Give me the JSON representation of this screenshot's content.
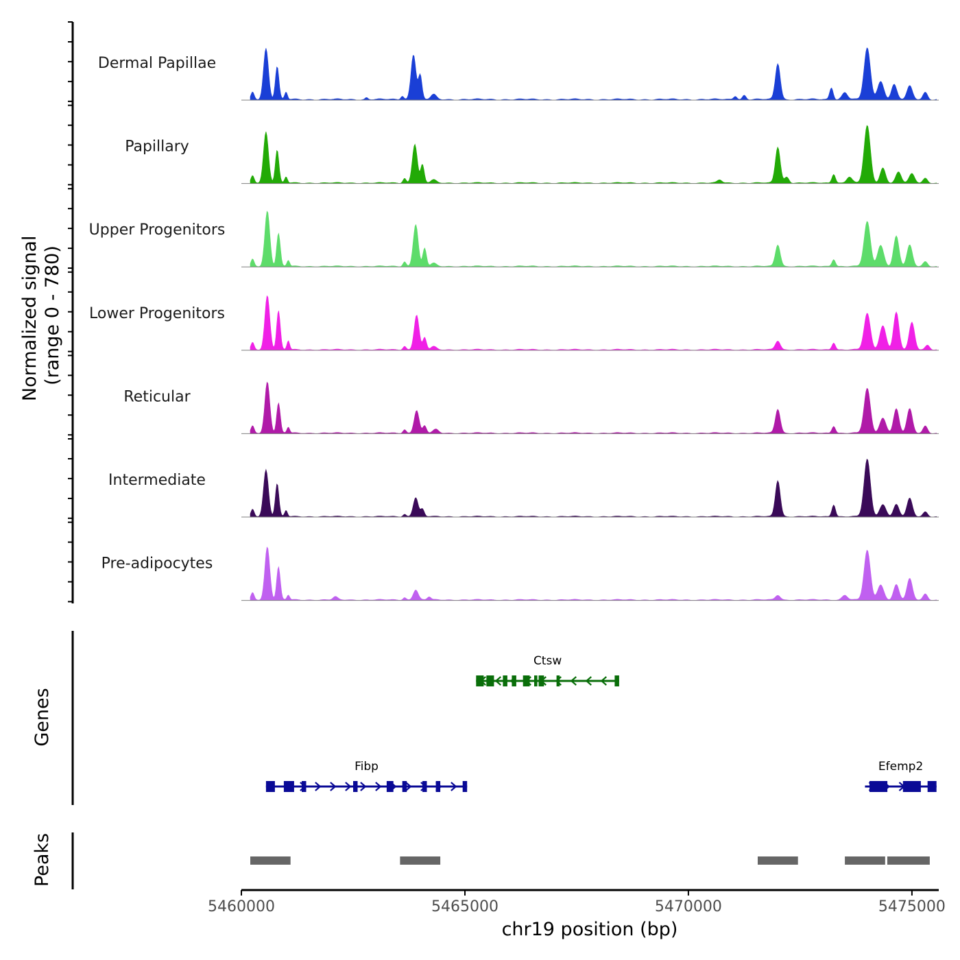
{
  "chart_data": {
    "type": "coverage-track",
    "chromosome": "chr19",
    "x_range_bp": [
      5460000,
      5475600
    ],
    "signal_range": [
      0,
      780
    ],
    "ylabel_line1": "Normalized signal",
    "ylabel_line2": "(range 0 - 780)",
    "xlabel": "chr19 position (bp)",
    "x_ticks": [
      {
        "value": 5460000,
        "label": "5460000"
      },
      {
        "value": 5465000,
        "label": "5465000"
      },
      {
        "value": 5470000,
        "label": "5470000"
      },
      {
        "value": 5475000,
        "label": "5475000"
      }
    ],
    "genes_label": "Genes",
    "peaks_label": "Peaks",
    "tracks": [
      {
        "name": "Dermal Papillae",
        "color": "#1a3fd6",
        "peaks": [
          [
            5460250,
            0.12,
            35
          ],
          [
            5460550,
            0.85,
            55
          ],
          [
            5460800,
            0.55,
            40
          ],
          [
            5461000,
            0.12,
            30
          ],
          [
            5462800,
            0.03,
            30
          ],
          [
            5463600,
            0.06,
            35
          ],
          [
            5463850,
            0.75,
            55
          ],
          [
            5464000,
            0.4,
            40
          ],
          [
            5464300,
            0.08,
            60
          ],
          [
            5471050,
            0.06,
            40
          ],
          [
            5471250,
            0.07,
            40
          ],
          [
            5472000,
            0.6,
            55
          ],
          [
            5473200,
            0.2,
            40
          ],
          [
            5473500,
            0.12,
            60
          ],
          [
            5474000,
            0.85,
            70
          ],
          [
            5474300,
            0.3,
            70
          ],
          [
            5474600,
            0.25,
            60
          ],
          [
            5474950,
            0.22,
            60
          ],
          [
            5475300,
            0.12,
            50
          ]
        ],
        "noise": 0.025
      },
      {
        "name": "Papillary",
        "color": "#22aa06",
        "peaks": [
          [
            5460250,
            0.12,
            35
          ],
          [
            5460550,
            0.85,
            55
          ],
          [
            5460800,
            0.55,
            40
          ],
          [
            5461000,
            0.1,
            30
          ],
          [
            5463650,
            0.08,
            35
          ],
          [
            5463880,
            0.65,
            55
          ],
          [
            5464050,
            0.3,
            40
          ],
          [
            5464300,
            0.05,
            60
          ],
          [
            5470700,
            0.05,
            50
          ],
          [
            5472000,
            0.6,
            55
          ],
          [
            5472200,
            0.1,
            50
          ],
          [
            5473250,
            0.15,
            40
          ],
          [
            5473600,
            0.1,
            60
          ],
          [
            5474000,
            0.95,
            70
          ],
          [
            5474350,
            0.25,
            60
          ],
          [
            5474700,
            0.18,
            60
          ],
          [
            5475000,
            0.15,
            60
          ],
          [
            5475300,
            0.08,
            50
          ]
        ],
        "noise": 0.02
      },
      {
        "name": "Upper Progenitors",
        "color": "#5ddc6a",
        "peaks": [
          [
            5460250,
            0.12,
            35
          ],
          [
            5460580,
            0.92,
            55
          ],
          [
            5460830,
            0.55,
            40
          ],
          [
            5461050,
            0.1,
            30
          ],
          [
            5463650,
            0.08,
            35
          ],
          [
            5463900,
            0.7,
            55
          ],
          [
            5464100,
            0.3,
            40
          ],
          [
            5464300,
            0.05,
            60
          ],
          [
            5472000,
            0.36,
            55
          ],
          [
            5473250,
            0.12,
            40
          ],
          [
            5474000,
            0.74,
            70
          ],
          [
            5474300,
            0.35,
            70
          ],
          [
            5474650,
            0.5,
            60
          ],
          [
            5474950,
            0.35,
            60
          ],
          [
            5475300,
            0.08,
            50
          ]
        ],
        "noise": 0.02
      },
      {
        "name": "Lower Progenitors",
        "color": "#f020e6",
        "peaks": [
          [
            5460250,
            0.12,
            35
          ],
          [
            5460580,
            0.9,
            55
          ],
          [
            5460830,
            0.65,
            40
          ],
          [
            5461050,
            0.15,
            30
          ],
          [
            5463650,
            0.06,
            35
          ],
          [
            5463920,
            0.58,
            55
          ],
          [
            5464100,
            0.2,
            40
          ],
          [
            5464300,
            0.05,
            60
          ],
          [
            5472000,
            0.15,
            55
          ],
          [
            5473250,
            0.12,
            40
          ],
          [
            5474000,
            0.6,
            70
          ],
          [
            5474350,
            0.4,
            70
          ],
          [
            5474650,
            0.62,
            60
          ],
          [
            5475000,
            0.45,
            60
          ],
          [
            5475350,
            0.08,
            50
          ]
        ],
        "noise": 0.02
      },
      {
        "name": "Reticular",
        "color": "#b01aa8",
        "peaks": [
          [
            5460250,
            0.12,
            35
          ],
          [
            5460580,
            0.85,
            55
          ],
          [
            5460830,
            0.5,
            40
          ],
          [
            5461050,
            0.1,
            30
          ],
          [
            5463650,
            0.06,
            35
          ],
          [
            5463920,
            0.38,
            55
          ],
          [
            5464100,
            0.12,
            40
          ],
          [
            5464350,
            0.06,
            60
          ],
          [
            5472000,
            0.4,
            55
          ],
          [
            5473250,
            0.12,
            40
          ],
          [
            5474000,
            0.74,
            70
          ],
          [
            5474350,
            0.25,
            70
          ],
          [
            5474650,
            0.4,
            60
          ],
          [
            5474950,
            0.4,
            60
          ],
          [
            5475300,
            0.12,
            50
          ]
        ],
        "noise": 0.02
      },
      {
        "name": "Intermediate",
        "color": "#3a0a58",
        "peaks": [
          [
            5460250,
            0.12,
            35
          ],
          [
            5460550,
            0.78,
            55
          ],
          [
            5460800,
            0.55,
            40
          ],
          [
            5461000,
            0.1,
            30
          ],
          [
            5463650,
            0.04,
            35
          ],
          [
            5463900,
            0.32,
            55
          ],
          [
            5464050,
            0.12,
            40
          ],
          [
            5472000,
            0.6,
            55
          ],
          [
            5473250,
            0.2,
            40
          ],
          [
            5474000,
            0.95,
            70
          ],
          [
            5474350,
            0.2,
            70
          ],
          [
            5474650,
            0.2,
            60
          ],
          [
            5474950,
            0.3,
            60
          ],
          [
            5475300,
            0.08,
            50
          ]
        ],
        "noise": 0.018
      },
      {
        "name": "Pre-adipocytes",
        "color": "#c060f0",
        "peaks": [
          [
            5460250,
            0.12,
            35
          ],
          [
            5460580,
            0.88,
            55
          ],
          [
            5460830,
            0.55,
            40
          ],
          [
            5461050,
            0.08,
            30
          ],
          [
            5462100,
            0.05,
            50
          ],
          [
            5463650,
            0.04,
            35
          ],
          [
            5463900,
            0.17,
            55
          ],
          [
            5464200,
            0.05,
            40
          ],
          [
            5472000,
            0.08,
            55
          ],
          [
            5473500,
            0.08,
            60
          ],
          [
            5474000,
            0.82,
            70
          ],
          [
            5474300,
            0.25,
            70
          ],
          [
            5474650,
            0.25,
            60
          ],
          [
            5474950,
            0.35,
            60
          ],
          [
            5475300,
            0.1,
            50
          ]
        ],
        "noise": 0.02
      }
    ],
    "genes": [
      {
        "name": "Ctsw",
        "strand": "-",
        "color": "#0a6e0a",
        "start": 5465250,
        "end": 5468450,
        "row": 1,
        "exons": [
          [
            5465250,
            5465420
          ],
          [
            5465480,
            5465650
          ],
          [
            5465850,
            5465950
          ],
          [
            5466050,
            5466150
          ],
          [
            5466300,
            5466450
          ],
          [
            5466550,
            5466620
          ],
          [
            5466650,
            5466770
          ],
          [
            5467050,
            5467120
          ],
          [
            5468350,
            5468450
          ]
        ]
      },
      {
        "name": "Fibp",
        "strand": "+",
        "color": "#0a0a96",
        "start": 5460550,
        "end": 5465050,
        "row": 2,
        "exons": [
          [
            5460550,
            5460750
          ],
          [
            5460950,
            5461180
          ],
          [
            5461350,
            5461450
          ],
          [
            5462500,
            5462600
          ],
          [
            5463250,
            5463400
          ],
          [
            5463600,
            5463700
          ],
          [
            5464050,
            5464150
          ],
          [
            5464350,
            5464450
          ],
          [
            5464950,
            5465050
          ]
        ]
      },
      {
        "name": "Efemp2",
        "strand": "+",
        "color": "#0a0a96",
        "start": 5473950,
        "end": 5475550,
        "row": 2,
        "exons": [
          [
            5474050,
            5474450
          ],
          [
            5474800,
            5475200
          ],
          [
            5475350,
            5475550
          ]
        ]
      }
    ],
    "peak_regions": [
      [
        5460200,
        5461100
      ],
      [
        5463550,
        5464450
      ],
      [
        5471550,
        5472450
      ],
      [
        5473500,
        5474400
      ],
      [
        5474450,
        5475400
      ]
    ]
  }
}
